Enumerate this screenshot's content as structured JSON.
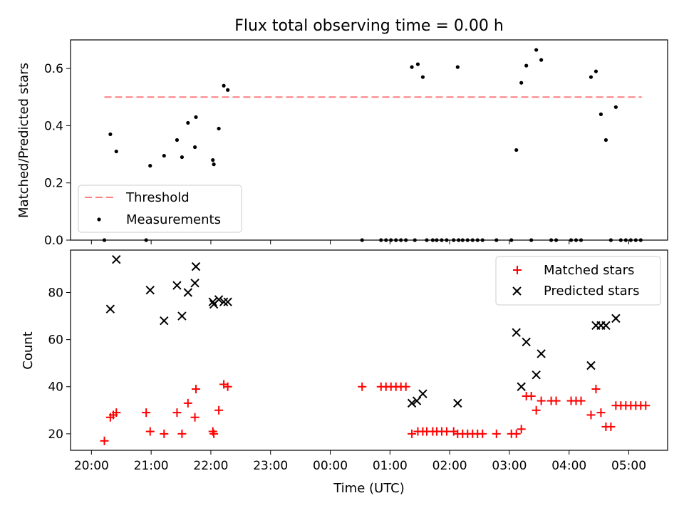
{
  "chart_data": [
    {
      "type": "scatter",
      "title": "Flux total observing time = 0.00 h",
      "ylabel": "Matched/Predicted stars",
      "xlabel": "",
      "ylim": [
        0,
        0.7
      ],
      "yticks": [
        "0.0",
        "0.2",
        "0.4",
        "0.6"
      ],
      "x_is_time_hours_since_2000": true,
      "grid": false,
      "legend_position": "lower-left",
      "threshold": {
        "name": "Threshold",
        "value": 0.5,
        "x_range": [
          "20:13",
          "05:13"
        ],
        "color": "#ff7f7f",
        "style": "dashed"
      },
      "series": [
        {
          "name": "Measurements",
          "color": "#000000",
          "marker": "dot",
          "points": [
            [
              "20:13",
              0.0
            ],
            [
              "20:19",
              0.37
            ],
            [
              "20:25",
              0.31
            ],
            [
              "20:55",
              0.0
            ],
            [
              "20:59",
              0.26
            ],
            [
              "21:13",
              0.295
            ],
            [
              "21:26",
              0.35
            ],
            [
              "21:31",
              0.29
            ],
            [
              "21:37",
              0.41
            ],
            [
              "21:44",
              0.325
            ],
            [
              "21:45",
              0.43
            ],
            [
              "22:02",
              0.28
            ],
            [
              "22:03",
              0.265
            ],
            [
              "22:08",
              0.39
            ],
            [
              "22:13",
              0.54
            ],
            [
              "22:17",
              0.525
            ],
            [
              "00:32",
              0.0
            ],
            [
              "00:51",
              0.0
            ],
            [
              "00:56",
              0.0
            ],
            [
              "01:01",
              0.0
            ],
            [
              "01:06",
              0.0
            ],
            [
              "01:11",
              0.0
            ],
            [
              "01:16",
              0.0
            ],
            [
              "01:22",
              0.605
            ],
            [
              "01:25",
              0.0
            ],
            [
              "01:28",
              0.615
            ],
            [
              "01:33",
              0.57
            ],
            [
              "01:37",
              0.0
            ],
            [
              "01:43",
              0.0
            ],
            [
              "01:47",
              0.0
            ],
            [
              "01:52",
              0.0
            ],
            [
              "01:57",
              0.0
            ],
            [
              "02:04",
              0.0
            ],
            [
              "02:08",
              0.605
            ],
            [
              "02:09",
              0.0
            ],
            [
              "02:13",
              0.0
            ],
            [
              "02:18",
              0.0
            ],
            [
              "02:23",
              0.0
            ],
            [
              "02:28",
              0.0
            ],
            [
              "02:33",
              0.0
            ],
            [
              "02:47",
              0.0
            ],
            [
              "03:02",
              0.0
            ],
            [
              "03:07",
              0.315
            ],
            [
              "03:12",
              0.55
            ],
            [
              "03:17",
              0.61
            ],
            [
              "03:22",
              0.0
            ],
            [
              "03:27",
              0.665
            ],
            [
              "03:32",
              0.63
            ],
            [
              "03:42",
              0.0
            ],
            [
              "03:47",
              0.0
            ],
            [
              "04:02",
              0.0
            ],
            [
              "04:07",
              0.0
            ],
            [
              "04:12",
              0.0
            ],
            [
              "04:22",
              0.57
            ],
            [
              "04:27",
              0.59
            ],
            [
              "04:32",
              0.44
            ],
            [
              "04:37",
              0.35
            ],
            [
              "04:42",
              0.0
            ],
            [
              "04:47",
              0.465
            ],
            [
              "04:52",
              0.0
            ],
            [
              "04:57",
              0.0
            ],
            [
              "05:02",
              0.0
            ],
            [
              "05:07",
              0.0
            ],
            [
              "05:12",
              0.0
            ]
          ]
        }
      ]
    },
    {
      "type": "scatter",
      "title": "",
      "ylabel": "Count",
      "xlabel": "Time (UTC)",
      "ylim": [
        13,
        98
      ],
      "yticks": [
        "20",
        "40",
        "60",
        "80"
      ],
      "xticks": [
        "20:00",
        "21:00",
        "22:00",
        "23:00",
        "00:00",
        "01:00",
        "02:00",
        "03:00",
        "04:00",
        "05:00"
      ],
      "grid": false,
      "legend_position": "upper-right",
      "series": [
        {
          "name": "Matched stars",
          "color": "#ff0000",
          "marker": "plus",
          "points": [
            [
              "20:13",
              17
            ],
            [
              "20:19",
              27
            ],
            [
              "20:22",
              28
            ],
            [
              "20:25",
              29
            ],
            [
              "20:55",
              29
            ],
            [
              "20:59",
              21
            ],
            [
              "21:13",
              20
            ],
            [
              "21:26",
              29
            ],
            [
              "21:31",
              20
            ],
            [
              "21:37",
              33
            ],
            [
              "21:44",
              27
            ],
            [
              "21:45",
              39
            ],
            [
              "22:02",
              21
            ],
            [
              "22:03",
              20
            ],
            [
              "22:08",
              30
            ],
            [
              "22:13",
              41
            ],
            [
              "22:17",
              40
            ],
            [
              "00:32",
              40
            ],
            [
              "00:51",
              40
            ],
            [
              "00:56",
              40
            ],
            [
              "01:01",
              40
            ],
            [
              "01:06",
              40
            ],
            [
              "01:11",
              40
            ],
            [
              "01:16",
              40
            ],
            [
              "01:22",
              20
            ],
            [
              "01:28",
              21
            ],
            [
              "01:33",
              21
            ],
            [
              "01:37",
              21
            ],
            [
              "01:43",
              21
            ],
            [
              "01:47",
              21
            ],
            [
              "01:52",
              21
            ],
            [
              "01:57",
              21
            ],
            [
              "02:04",
              21
            ],
            [
              "02:08",
              20
            ],
            [
              "02:13",
              20
            ],
            [
              "02:18",
              20
            ],
            [
              "02:23",
              20
            ],
            [
              "02:28",
              20
            ],
            [
              "02:33",
              20
            ],
            [
              "02:47",
              20
            ],
            [
              "03:02",
              20
            ],
            [
              "03:07",
              20
            ],
            [
              "03:12",
              22
            ],
            [
              "03:17",
              36
            ],
            [
              "03:22",
              36
            ],
            [
              "03:27",
              30
            ],
            [
              "03:32",
              34
            ],
            [
              "03:42",
              34
            ],
            [
              "03:47",
              34
            ],
            [
              "04:02",
              34
            ],
            [
              "04:07",
              34
            ],
            [
              "04:12",
              34
            ],
            [
              "04:22",
              28
            ],
            [
              "04:27",
              39
            ],
            [
              "04:32",
              29
            ],
            [
              "04:37",
              23
            ],
            [
              "04:42",
              23
            ],
            [
              "04:47",
              32
            ],
            [
              "04:52",
              32
            ],
            [
              "04:57",
              32
            ],
            [
              "05:02",
              32
            ],
            [
              "05:07",
              32
            ],
            [
              "05:12",
              32
            ],
            [
              "05:17",
              32
            ]
          ]
        },
        {
          "name": "Predicted stars",
          "color": "#000000",
          "marker": "x",
          "points": [
            [
              "20:19",
              73
            ],
            [
              "20:25",
              94
            ],
            [
              "20:59",
              81
            ],
            [
              "21:13",
              68
            ],
            [
              "21:26",
              83
            ],
            [
              "21:31",
              70
            ],
            [
              "21:37",
              80
            ],
            [
              "21:44",
              84
            ],
            [
              "21:45",
              91
            ],
            [
              "22:02",
              76
            ],
            [
              "22:03",
              75
            ],
            [
              "22:08",
              77
            ],
            [
              "22:13",
              76
            ],
            [
              "22:17",
              76
            ],
            [
              "01:22",
              33
            ],
            [
              "01:27",
              34
            ],
            [
              "01:33",
              37
            ],
            [
              "02:08",
              33
            ],
            [
              "03:07",
              63
            ],
            [
              "03:12",
              40
            ],
            [
              "03:17",
              59
            ],
            [
              "03:27",
              45
            ],
            [
              "03:32",
              54
            ],
            [
              "04:22",
              49
            ],
            [
              "04:27",
              66
            ],
            [
              "04:32",
              66
            ],
            [
              "04:37",
              66
            ],
            [
              "04:47",
              69
            ]
          ]
        }
      ]
    }
  ]
}
